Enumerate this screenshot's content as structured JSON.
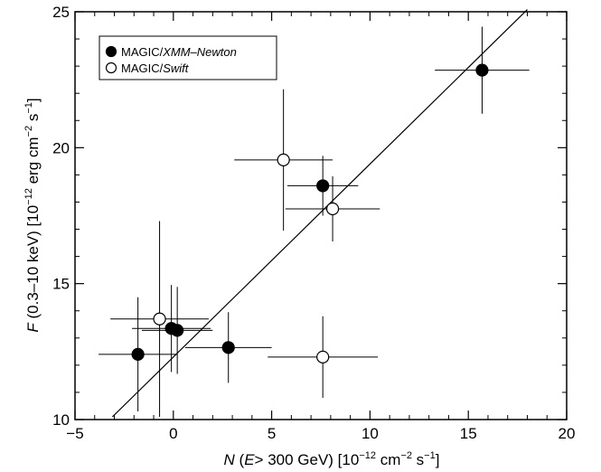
{
  "chart_data": {
    "type": "scatter",
    "xlim": [
      -5,
      20
    ],
    "ylim": [
      10,
      25
    ],
    "x_ticks": [
      -5,
      0,
      5,
      10,
      15,
      20
    ],
    "y_ticks": [
      10,
      15,
      20,
      25
    ],
    "x_tick_labels": [
      "−5",
      "0",
      "5",
      "10",
      "15",
      "20"
    ],
    "y_tick_labels": [
      "10",
      "15",
      "20",
      "25"
    ],
    "xlabel": {
      "var": "N",
      "paren_open": " (",
      "sub": "E",
      "cond": "> 300 GeV) [10",
      "exp1": "−12",
      "unit1": " cm",
      "exp2": "−2",
      "unit2": " s",
      "exp3": "−1",
      "close": "]"
    },
    "ylabel": {
      "var": "F",
      "range": " (0.3–10 keV) [10",
      "exp1": "−12",
      "unit1": " erg cm",
      "exp2": "−2",
      "unit2": " s",
      "exp3": "−1",
      "close": "]"
    },
    "legend_position": "top-left",
    "series": [
      {
        "name_prefix": "MAGIC/",
        "name_italic": "XMM–Newton",
        "marker": "filled-circle",
        "points": [
          {
            "x": -1.8,
            "y": 12.4,
            "xerr": 2.0,
            "yerr": 2.1
          },
          {
            "x": -0.1,
            "y": 13.35,
            "xerr": 2.0,
            "yerr": 1.6
          },
          {
            "x": 0.2,
            "y": 13.28,
            "xerr": 1.8,
            "yerr": 1.6
          },
          {
            "x": 2.8,
            "y": 12.65,
            "xerr": 2.2,
            "yerr": 1.3
          },
          {
            "x": 7.6,
            "y": 18.6,
            "xerr": 1.8,
            "yerr": 1.1
          },
          {
            "x": 15.7,
            "y": 22.85,
            "xerr": 2.4,
            "yerr": 1.6
          }
        ]
      },
      {
        "name_prefix": "MAGIC/",
        "name_italic": "Swift",
        "marker": "open-circle",
        "points": [
          {
            "x": -0.7,
            "y": 13.7,
            "xerr": 2.5,
            "yerr": 3.6
          },
          {
            "x": 5.6,
            "y": 19.55,
            "xerr": 2.5,
            "yerr": 2.6
          },
          {
            "x": 8.1,
            "y": 17.75,
            "xerr": 2.4,
            "yerr": 1.2
          },
          {
            "x": 7.6,
            "y": 12.3,
            "xerr": 2.8,
            "yerr": 1.5
          }
        ]
      }
    ],
    "fit_line": {
      "slope": 0.71,
      "intercept": 12.3,
      "x_range": [
        -3.1,
        18.0
      ]
    }
  }
}
